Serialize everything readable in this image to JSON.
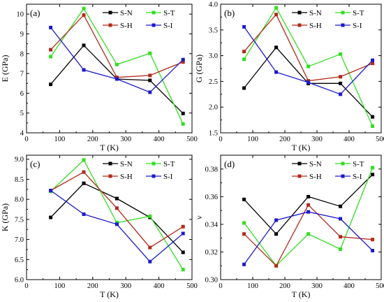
{
  "series_colors": {
    "S-N": "#000000",
    "S-T": "#33dd22",
    "S-H": "#b22a1a",
    "S-I": "#1a1acc"
  },
  "chart_data": [
    {
      "type": "line",
      "panel_label": "(a)",
      "xlabel": "T (K)",
      "ylabel": "E (GPa)",
      "xlim": [
        0,
        500
      ],
      "ylim": [
        4,
        10.5
      ],
      "xticks": [
        0,
        100,
        200,
        300,
        400,
        500
      ],
      "yticks": [
        4,
        5,
        6,
        7,
        8,
        9,
        10
      ],
      "grid": false,
      "legend_placement": "top-right",
      "x": [
        73,
        173,
        273,
        373,
        473
      ],
      "series": [
        {
          "name": "S-N",
          "values": [
            6.45,
            8.42,
            6.72,
            6.65,
            4.98
          ]
        },
        {
          "name": "S-T",
          "values": [
            7.85,
            10.28,
            7.45,
            8.02,
            4.45
          ]
        },
        {
          "name": "S-H",
          "values": [
            8.2,
            9.95,
            6.8,
            6.9,
            7.58
          ]
        },
        {
          "name": "S-I",
          "values": [
            9.32,
            7.18,
            6.72,
            6.05,
            7.7
          ]
        }
      ]
    },
    {
      "type": "line",
      "panel_label": "(b)",
      "xlabel": "T (K)",
      "ylabel": "G (GPa)",
      "xlim": [
        0,
        500
      ],
      "ylim": [
        1.5,
        4.0
      ],
      "xticks": [
        0,
        100,
        200,
        300,
        400,
        500
      ],
      "yticks": [
        1.5,
        2.0,
        2.5,
        3.0,
        3.5,
        4.0
      ],
      "grid": false,
      "legend_placement": "top-right",
      "x": [
        73,
        173,
        273,
        373,
        473
      ],
      "series": [
        {
          "name": "S-N",
          "values": [
            2.37,
            3.16,
            2.46,
            2.46,
            1.81
          ]
        },
        {
          "name": "S-T",
          "values": [
            2.93,
            3.93,
            2.79,
            3.03,
            1.63
          ]
        },
        {
          "name": "S-H",
          "values": [
            3.08,
            3.8,
            2.51,
            2.59,
            2.85
          ]
        },
        {
          "name": "S-I",
          "values": [
            3.56,
            2.68,
            2.48,
            2.25,
            2.91
          ]
        }
      ]
    },
    {
      "type": "line",
      "panel_label": "(c)",
      "xlabel": "T (K)",
      "ylabel": "K (GPa)",
      "xlim": [
        0,
        500
      ],
      "ylim": [
        6.0,
        9.1
      ],
      "xticks": [
        0,
        100,
        200,
        300,
        400,
        500
      ],
      "yticks": [
        6.0,
        6.5,
        7.0,
        7.5,
        8.0,
        8.5,
        9.0
      ],
      "grid": false,
      "legend_placement": "top-right",
      "x": [
        73,
        173,
        273,
        373,
        473
      ],
      "series": [
        {
          "name": "S-N",
          "values": [
            7.55,
            8.4,
            8.02,
            7.55,
            6.68
          ]
        },
        {
          "name": "S-T",
          "values": [
            8.2,
            8.98,
            7.42,
            7.58,
            6.25
          ]
        },
        {
          "name": "S-H",
          "values": [
            8.22,
            8.68,
            7.78,
            6.8,
            7.32
          ]
        },
        {
          "name": "S-I",
          "values": [
            8.22,
            7.63,
            7.38,
            6.45,
            7.15
          ]
        }
      ]
    },
    {
      "type": "line",
      "panel_label": "(d)",
      "xlabel": "T (K)",
      "ylabel": "ν",
      "xlim": [
        0,
        500
      ],
      "ylim": [
        0.3,
        0.39
      ],
      "xticks": [
        0,
        100,
        200,
        300,
        400,
        500
      ],
      "yticks": [
        0.3,
        0.32,
        0.34,
        0.36,
        0.38
      ],
      "grid": false,
      "legend_placement": "top-right",
      "x": [
        73,
        173,
        273,
        373,
        473
      ],
      "series": [
        {
          "name": "S-N",
          "values": [
            0.358,
            0.333,
            0.36,
            0.353,
            0.376
          ]
        },
        {
          "name": "S-T",
          "values": [
            0.341,
            0.31,
            0.333,
            0.322,
            0.381
          ]
        },
        {
          "name": "S-H",
          "values": [
            0.333,
            0.31,
            0.354,
            0.331,
            0.329
          ]
        },
        {
          "name": "S-I",
          "values": [
            0.311,
            0.343,
            0.349,
            0.344,
            0.321
          ]
        }
      ]
    }
  ]
}
